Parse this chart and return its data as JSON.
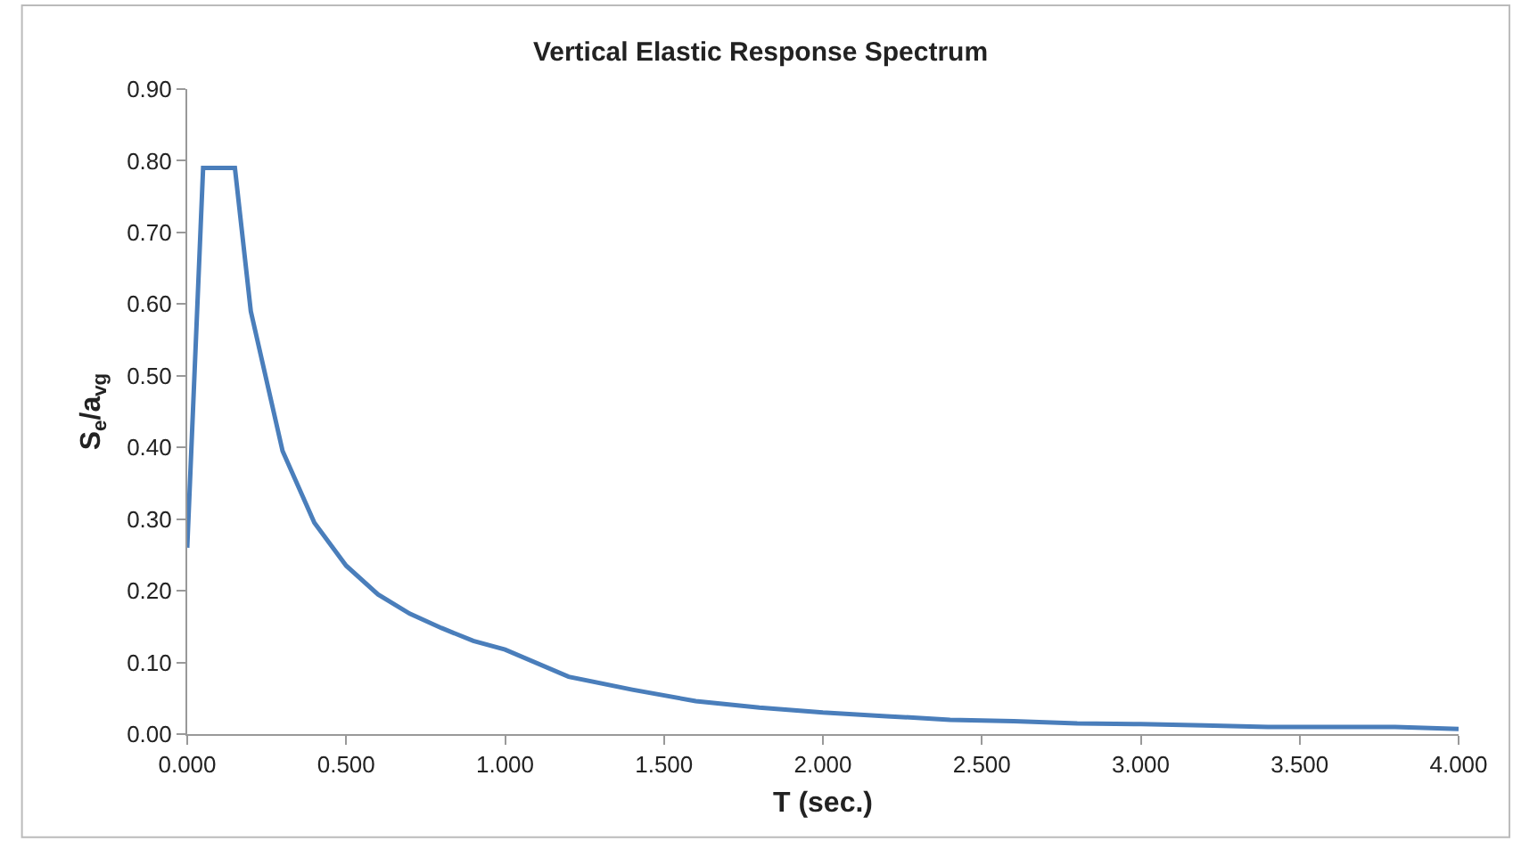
{
  "chart_data": {
    "type": "line",
    "title": "Vertical Elastic Response Spectrum",
    "xlabel": "T (sec.)",
    "ylabel": "S$_{e}$/a$_{vg}$",
    "x": [
      0,
      0.05,
      0.15,
      0.2,
      0.3,
      0.4,
      0.5,
      0.6,
      0.7,
      0.8,
      0.9,
      1.0,
      1.2,
      1.4,
      1.6,
      1.8,
      2.0,
      2.2,
      2.4,
      2.6,
      2.8,
      3.0,
      3.2,
      3.4,
      3.6,
      3.8,
      4.0
    ],
    "series": [
      {
        "color": "#4a7ebb",
        "values": [
          0.26,
          0.79,
          0.79,
          0.59,
          0.395,
          0.295,
          0.235,
          0.195,
          0.168,
          0.148,
          0.13,
          0.118,
          0.08,
          0.062,
          0.046,
          0.037,
          0.03,
          0.025,
          0.02,
          0.018,
          0.015,
          0.014,
          0.012,
          0.01,
          0.01,
          0.01,
          0.007
        ]
      }
    ],
    "xlim": [
      0,
      4
    ],
    "xticks": [
      {
        "value": 0,
        "label": "0.000"
      },
      {
        "value": 0.5,
        "label": "0.500"
      },
      {
        "value": 1,
        "label": "1.000"
      },
      {
        "value": 1.5,
        "label": "1.500"
      },
      {
        "value": 2,
        "label": "2.000"
      },
      {
        "value": 2.5,
        "label": "2.500"
      },
      {
        "value": 3,
        "label": "3.000"
      },
      {
        "value": 3.5,
        "label": "3.500"
      },
      {
        "value": 4,
        "label": "4.000"
      }
    ],
    "ylim": [
      0,
      0.9
    ],
    "yticks": [
      {
        "value": 0,
        "label": "0.00"
      },
      {
        "value": 0.1,
        "label": "0.10"
      },
      {
        "value": 0.2,
        "label": "0.20"
      },
      {
        "value": 0.3,
        "label": "0.30"
      },
      {
        "value": 0.4,
        "label": "0.40"
      },
      {
        "value": 0.5,
        "label": "0.50"
      },
      {
        "value": 0.6,
        "label": "0.60"
      },
      {
        "value": 0.7,
        "label": "0.70"
      },
      {
        "value": 0.8,
        "label": "0.80"
      },
      {
        "value": 0.9,
        "label": "0.90"
      }
    ],
    "marker": "none",
    "line_style": "solid"
  }
}
